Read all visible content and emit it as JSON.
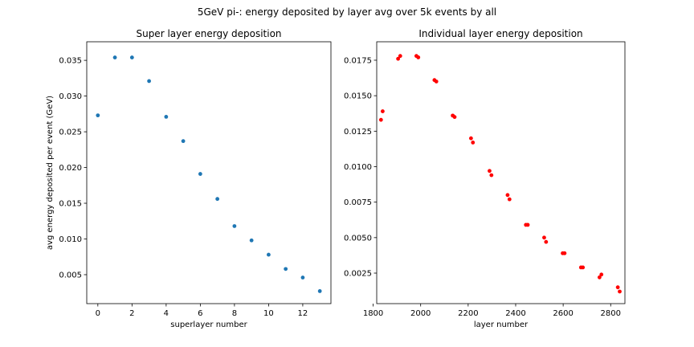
{
  "figure": {
    "suptitle": "5GeV pi-: energy deposited by layer avg over 5k events by all"
  },
  "chart_data": [
    {
      "type": "scatter",
      "title": "Super layer energy deposition",
      "xlabel": "superlayer number",
      "ylabel": "avg energy deposited per event (GeV)",
      "xlim": [
        -0.65,
        13.65
      ],
      "ylim": [
        0.00095,
        0.0376
      ],
      "xticks": [
        0,
        2,
        4,
        6,
        8,
        10,
        12
      ],
      "xtick_labels": [
        "0",
        "2",
        "4",
        "6",
        "8",
        "10",
        "12"
      ],
      "yticks": [
        0.005,
        0.01,
        0.015,
        0.02,
        0.025,
        0.03,
        0.035
      ],
      "ytick_labels": [
        "0.005",
        "0.010",
        "0.015",
        "0.020",
        "0.025",
        "0.030",
        "0.035"
      ],
      "grid": false,
      "color": "#1f77b4",
      "series": [
        {
          "x": [
            0,
            1,
            2,
            3,
            4,
            5,
            6,
            7,
            8,
            9,
            10,
            11,
            12,
            13
          ],
          "y": [
            0.0273,
            0.0354,
            0.0354,
            0.0321,
            0.0271,
            0.0237,
            0.0191,
            0.0156,
            0.0118,
            0.0098,
            0.0078,
            0.0058,
            0.0046,
            0.0027
          ]
        }
      ]
    },
    {
      "type": "scatter",
      "title": "Individual layer energy deposition",
      "xlabel": "layer number",
      "ylabel": "",
      "xlim": [
        1815,
        2860
      ],
      "ylim": [
        0.00035,
        0.0188
      ],
      "xticks": [
        1800,
        2000,
        2200,
        2400,
        2600,
        2800
      ],
      "xtick_labels": [
        "1800",
        "2000",
        "2200",
        "2400",
        "2600",
        "2800"
      ],
      "yticks": [
        0.0025,
        0.005,
        0.0075,
        0.01,
        0.0125,
        0.015,
        0.0175
      ],
      "ytick_labels": [
        "0.0025",
        "0.0050",
        "0.0075",
        "0.0100",
        "0.0125",
        "0.0150",
        "0.0175"
      ],
      "grid": false,
      "color": "#ff0000",
      "series": [
        {
          "x": [
            1833,
            1840,
            1905,
            1914,
            1982,
            1990,
            2058,
            2066,
            2135,
            2143,
            2212,
            2220,
            2290,
            2298,
            2366,
            2374,
            2443,
            2451,
            2520,
            2528,
            2598,
            2606,
            2675,
            2683,
            2753,
            2761,
            2830,
            2838
          ],
          "y": [
            0.0133,
            0.0139,
            0.0176,
            0.0178,
            0.0178,
            0.0177,
            0.0161,
            0.016,
            0.0136,
            0.0135,
            0.012,
            0.0117,
            0.0097,
            0.0094,
            0.008,
            0.0077,
            0.0059,
            0.0059,
            0.005,
            0.0047,
            0.0039,
            0.0039,
            0.0029,
            0.0029,
            0.0022,
            0.0024,
            0.0015,
            0.0012
          ]
        }
      ]
    }
  ]
}
